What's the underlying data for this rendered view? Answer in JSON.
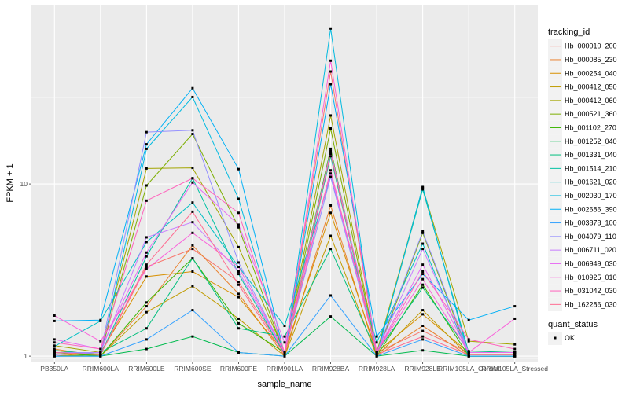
{
  "chart_data": {
    "type": "line",
    "xlabel": "sample_name",
    "ylabel": "FPKM + 1",
    "y_scale": "log10",
    "ylim": [
      0.93,
      110
    ],
    "y_ticks": [
      1,
      10
    ],
    "y_tick_labels": [
      "1",
      "10"
    ],
    "categories": [
      "PB350LA",
      "RRIM600LA",
      "RRIM600LE",
      "RRIM600SE",
      "RRIM600PE",
      "RRIM901LA",
      "RRIM928BA",
      "RRIM928LA",
      "RRIM928LE",
      "RRIM105LA_Control",
      "RRIM105LA_Stressed"
    ],
    "grid": true,
    "background": "#ebebeb",
    "legend_position": "right",
    "legend_title": "tracking_id",
    "point_legend_title": "quant_status",
    "point_legend_label": "OK",
    "series": [
      {
        "name": "Hb_000010_200",
        "color": "#F8766D",
        "values": [
          1.05,
          1.02,
          3.3,
          4.2,
          2.7,
          1.05,
          45,
          1.05,
          1.4,
          1.05,
          1.05
        ]
      },
      {
        "name": "Hb_000085_230",
        "color": "#EA8331",
        "values": [
          1.1,
          1.0,
          1.95,
          4.4,
          2.3,
          1.0,
          7.5,
          1.0,
          1.5,
          1.0,
          1.0
        ]
      },
      {
        "name": "Hb_000254_040",
        "color": "#D89000",
        "values": [
          1.0,
          1.05,
          2.9,
          3.1,
          2.2,
          1.05,
          6.8,
          1.05,
          1.75,
          1.05,
          1.05
        ]
      },
      {
        "name": "Hb_000412_050",
        "color": "#C09B00",
        "values": [
          1.08,
          1.0,
          1.8,
          2.55,
          1.65,
          1.0,
          5.0,
          1.0,
          1.85,
          1.0,
          1.0
        ]
      },
      {
        "name": "Hb_000412_060",
        "color": "#A3A500",
        "values": [
          1.15,
          1.05,
          12.3,
          12.4,
          4.3,
          1.05,
          25,
          1.05,
          9.5,
          1.22,
          1.17
        ]
      },
      {
        "name": "Hb_000521_360",
        "color": "#7CAE00",
        "values": [
          1.0,
          1.02,
          9.8,
          19.5,
          5.6,
          1.02,
          21,
          1.02,
          5.2,
          1.02,
          1.02
        ]
      },
      {
        "name": "Hb_001102_270",
        "color": "#39B600",
        "values": [
          1.05,
          1.0,
          2.05,
          3.7,
          1.55,
          1.05,
          16,
          1.0,
          2.6,
          1.0,
          1.0
        ]
      },
      {
        "name": "Hb_001252_040",
        "color": "#00BB4E",
        "values": [
          1.0,
          1.0,
          1.1,
          1.3,
          1.05,
          1.0,
          1.7,
          1.0,
          1.08,
          1.0,
          1.0
        ]
      },
      {
        "name": "Hb_001331_040",
        "color": "#00BF7D",
        "values": [
          1.02,
          1.05,
          1.45,
          3.7,
          1.45,
          1.3,
          4.2,
          1.05,
          2.5,
          1.07,
          1.05
        ]
      },
      {
        "name": "Hb_001514_210",
        "color": "#00C1A3",
        "values": [
          1.08,
          1.02,
          3.8,
          10.8,
          3.0,
          1.02,
          14.5,
          1.02,
          9.3,
          1.05,
          1.05
        ]
      },
      {
        "name": "Hb_001621_020",
        "color": "#00BFC4",
        "values": [
          1.14,
          1.6,
          4.6,
          7.8,
          3.3,
          1.5,
          11,
          1.2,
          4.5,
          1.0,
          1.0
        ]
      },
      {
        "name": "Hb_002030_170",
        "color": "#00BAE0",
        "values": [
          1.0,
          1.0,
          16,
          32,
          8.2,
          1.0,
          80,
          1.0,
          9.6,
          1.0,
          1.0
        ]
      },
      {
        "name": "Hb_002686_390",
        "color": "#00B0F6",
        "values": [
          1.6,
          1.62,
          17,
          36,
          12.2,
          1.02,
          38,
          1.3,
          3.0,
          1.62,
          1.95
        ]
      },
      {
        "name": "Hb_003878_100",
        "color": "#35A2FF",
        "values": [
          1.0,
          1.0,
          1.25,
          1.85,
          1.05,
          1.0,
          2.25,
          1.0,
          1.25,
          1.0,
          1.0
        ]
      },
      {
        "name": "Hb_004079_110",
        "color": "#9590FF",
        "values": [
          1.05,
          1.05,
          20,
          20.5,
          3.5,
          1.05,
          11,
          1.05,
          5.3,
          1.05,
          1.05
        ]
      },
      {
        "name": "Hb_006711_020",
        "color": "#C77CFF",
        "values": [
          1.02,
          1.05,
          4.9,
          6.0,
          3.1,
          1.05,
          15.5,
          1.05,
          4.2,
          1.05,
          1.05
        ]
      },
      {
        "name": "Hb_006949_030",
        "color": "#E76BF3",
        "values": [
          1.25,
          1.1,
          4.0,
          10.2,
          5.8,
          1.2,
          11.5,
          1.05,
          3.4,
          1.05,
          1.05
        ]
      },
      {
        "name": "Hb_010925_010",
        "color": "#FA62DB",
        "values": [
          1.72,
          1.22,
          3.2,
          5.2,
          3.3,
          1.05,
          52,
          1.05,
          2.8,
          1.05,
          1.65
        ]
      },
      {
        "name": "Hb_031042_030",
        "color": "#FF62BC",
        "values": [
          1.2,
          1.1,
          8.0,
          10.8,
          6.8,
          1.05,
          12,
          1.05,
          3.1,
          1.25,
          1.1
        ]
      },
      {
        "name": "Hb_162286_030",
        "color": "#FF6C91",
        "values": [
          1.05,
          1.02,
          3.4,
          6.9,
          2.6,
          1.02,
          15,
          1.02,
          1.3,
          1.02,
          1.02
        ]
      }
    ]
  }
}
